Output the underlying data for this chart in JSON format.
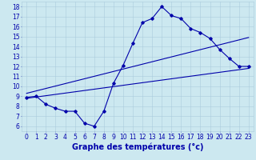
{
  "xlabel": "Graphe des températures (°c)",
  "bg_color": "#cce8f0",
  "line_color": "#0000aa",
  "grid_color": "#aaccdd",
  "xlim": [
    -0.5,
    23.5
  ],
  "ylim": [
    5.5,
    18.5
  ],
  "xticks": [
    0,
    1,
    2,
    3,
    4,
    5,
    6,
    7,
    8,
    9,
    10,
    11,
    12,
    13,
    14,
    15,
    16,
    17,
    18,
    19,
    20,
    21,
    22,
    23
  ],
  "yticks": [
    6,
    7,
    8,
    9,
    10,
    11,
    12,
    13,
    14,
    15,
    16,
    17,
    18
  ],
  "line1_x": [
    0,
    1,
    2,
    3,
    4,
    5,
    6,
    7,
    8,
    9,
    10,
    11,
    12,
    13,
    14,
    15,
    16,
    17,
    18,
    19,
    20,
    21,
    22,
    23
  ],
  "line1_y": [
    8.9,
    9.0,
    8.2,
    7.8,
    7.5,
    7.5,
    6.3,
    6.0,
    7.5,
    10.3,
    12.1,
    14.3,
    16.4,
    16.8,
    18.0,
    17.1,
    16.8,
    15.8,
    15.4,
    14.8,
    13.7,
    12.8,
    12.0,
    12.0
  ],
  "line2_x": [
    0,
    23
  ],
  "line2_y": [
    8.8,
    11.8
  ],
  "line3_x": [
    0,
    23
  ],
  "line3_y": [
    9.3,
    14.9
  ],
  "marker": "D",
  "markersize": 1.8,
  "linewidth": 0.8,
  "xlabel_fontsize": 7,
  "tick_fontsize": 5.5
}
